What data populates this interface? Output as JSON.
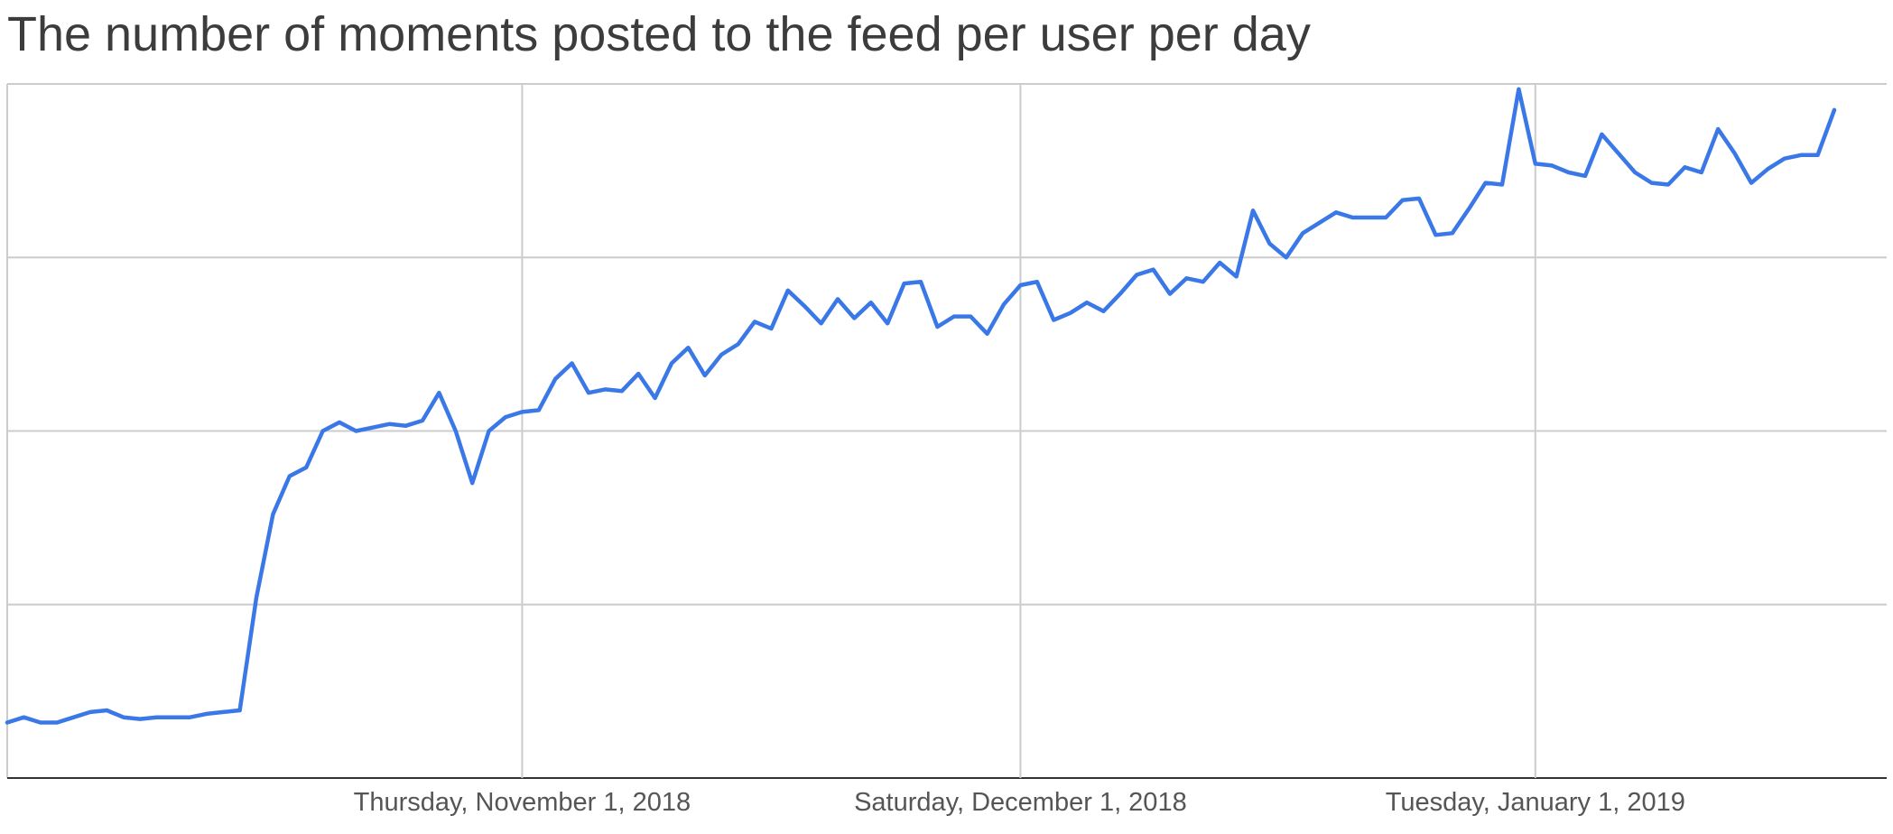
{
  "chart_data": {
    "type": "line",
    "title": "The number of moments posted to the feed per user per day",
    "xlabel": "",
    "ylabel": "",
    "x_ticks": [
      {
        "date": "2018-11-01",
        "label": "Thursday, November 1, 2018"
      },
      {
        "date": "2018-12-01",
        "label": "Saturday, December 1, 2018"
      },
      {
        "date": "2019-01-01",
        "label": "Tuesday, January 1, 2019"
      }
    ],
    "x_range": [
      "2018-10-01",
      "2019-01-19"
    ],
    "y_range": [
      0,
      4
    ],
    "y_gridlines": [
      0,
      1,
      2,
      3,
      4
    ],
    "y_tick_labels_visible": false,
    "grid": true,
    "legend": "none",
    "color": "#3b78e7",
    "series": [
      {
        "x": [
          "2018-10-01",
          "2018-10-02",
          "2018-10-03",
          "2018-10-04",
          "2018-10-05",
          "2018-10-06",
          "2018-10-07",
          "2018-10-08",
          "2018-10-09",
          "2018-10-10",
          "2018-10-11",
          "2018-10-12",
          "2018-10-13",
          "2018-10-14",
          "2018-10-15",
          "2018-10-16",
          "2018-10-17",
          "2018-10-18",
          "2018-10-19",
          "2018-10-20",
          "2018-10-21",
          "2018-10-22",
          "2018-10-23",
          "2018-10-24",
          "2018-10-25",
          "2018-10-26",
          "2018-10-27",
          "2018-10-28",
          "2018-10-29",
          "2018-10-30",
          "2018-10-31",
          "2018-11-01",
          "2018-11-02",
          "2018-11-03",
          "2018-11-04",
          "2018-11-05",
          "2018-11-06",
          "2018-11-07",
          "2018-11-08",
          "2018-11-09",
          "2018-11-10",
          "2018-11-11",
          "2018-11-12",
          "2018-11-13",
          "2018-11-14",
          "2018-11-15",
          "2018-11-16",
          "2018-11-17",
          "2018-11-18",
          "2018-11-19",
          "2018-11-20",
          "2018-11-21",
          "2018-11-22",
          "2018-11-23",
          "2018-11-24",
          "2018-11-25",
          "2018-11-26",
          "2018-11-27",
          "2018-11-28",
          "2018-11-29",
          "2018-11-30",
          "2018-12-01",
          "2018-12-02",
          "2018-12-03",
          "2018-12-04",
          "2018-12-05",
          "2018-12-06",
          "2018-12-07",
          "2018-12-08",
          "2018-12-09",
          "2018-12-10",
          "2018-12-11",
          "2018-12-12",
          "2018-12-13",
          "2018-12-14",
          "2018-12-15",
          "2018-12-16",
          "2018-12-17",
          "2018-12-18",
          "2018-12-19",
          "2018-12-20",
          "2018-12-21",
          "2018-12-22",
          "2018-12-23",
          "2018-12-24",
          "2018-12-25",
          "2018-12-26",
          "2018-12-27",
          "2018-12-28",
          "2018-12-29",
          "2018-12-30",
          "2018-12-31",
          "2019-01-01",
          "2019-01-02",
          "2019-01-03",
          "2019-01-04",
          "2019-01-05",
          "2019-01-06",
          "2019-01-07",
          "2019-01-08",
          "2019-01-09",
          "2019-01-10",
          "2019-01-11",
          "2019-01-12",
          "2019-01-13",
          "2019-01-14",
          "2019-01-15",
          "2019-01-16",
          "2019-01-17",
          "2019-01-18",
          "2019-01-19"
        ],
        "y": [
          0.32,
          0.35,
          0.32,
          0.32,
          0.35,
          0.38,
          0.39,
          0.35,
          0.34,
          0.35,
          0.35,
          0.35,
          0.37,
          0.38,
          0.39,
          1.04,
          1.52,
          1.74,
          1.79,
          2.0,
          2.05,
          2.0,
          2.02,
          2.04,
          2.03,
          2.06,
          2.22,
          2.0,
          1.7,
          2.0,
          2.08,
          2.11,
          2.12,
          2.3,
          2.39,
          2.22,
          2.24,
          2.23,
          2.33,
          2.19,
          2.39,
          2.48,
          2.32,
          2.44,
          2.5,
          2.63,
          2.59,
          2.81,
          2.72,
          2.62,
          2.76,
          2.65,
          2.74,
          2.62,
          2.85,
          2.86,
          2.6,
          2.66,
          2.66,
          2.56,
          2.73,
          2.84,
          2.86,
          2.64,
          2.68,
          2.74,
          2.69,
          2.79,
          2.9,
          2.93,
          2.79,
          2.88,
          2.86,
          2.97,
          2.89,
          3.27,
          3.08,
          3.0,
          3.14,
          3.2,
          3.26,
          3.23,
          3.23,
          3.23,
          3.33,
          3.34,
          3.13,
          3.14,
          3.28,
          3.43,
          3.42,
          3.97,
          3.54,
          3.53,
          3.49,
          3.47,
          3.71,
          3.6,
          3.49,
          3.43,
          3.42,
          3.52,
          3.49,
          3.74,
          3.6,
          3.43,
          3.51,
          3.57,
          3.59,
          3.59,
          3.85
        ]
      }
    ]
  }
}
